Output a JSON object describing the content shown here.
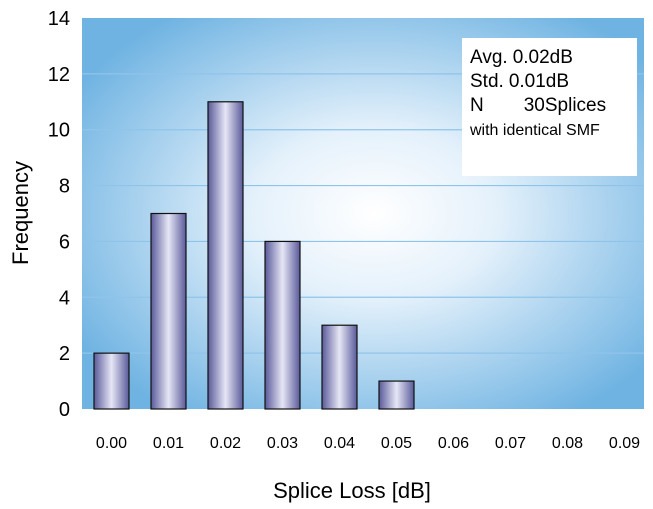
{
  "chart_data": {
    "type": "bar",
    "categories": [
      "0.00",
      "0.01",
      "0.02",
      "0.03",
      "0.04",
      "0.05",
      "0.06",
      "0.07",
      "0.08",
      "0.09"
    ],
    "values": [
      2,
      7,
      11,
      6,
      3,
      1,
      0,
      0,
      0,
      0
    ],
    "xlabel": "Splice Loss [dB]",
    "ylabel": "Frequency",
    "ylim": [
      0,
      14
    ],
    "yticks": [
      0,
      2,
      4,
      6,
      8,
      10,
      12,
      14
    ],
    "grid": true,
    "colors": {
      "bar_dark": "#5a5a9a",
      "bar_light": "#e6e6f6",
      "plot_edge": "#6fb3e2",
      "plot_center": "#ffffff",
      "grid": "#8fc4ea"
    }
  },
  "stats": {
    "avg_label": "Avg.",
    "avg_value": "0.02dB",
    "std_label": "Std.",
    "std_value": "0.01dB",
    "n_label": "N",
    "n_value": "30Splices",
    "note": "with identical SMF"
  }
}
